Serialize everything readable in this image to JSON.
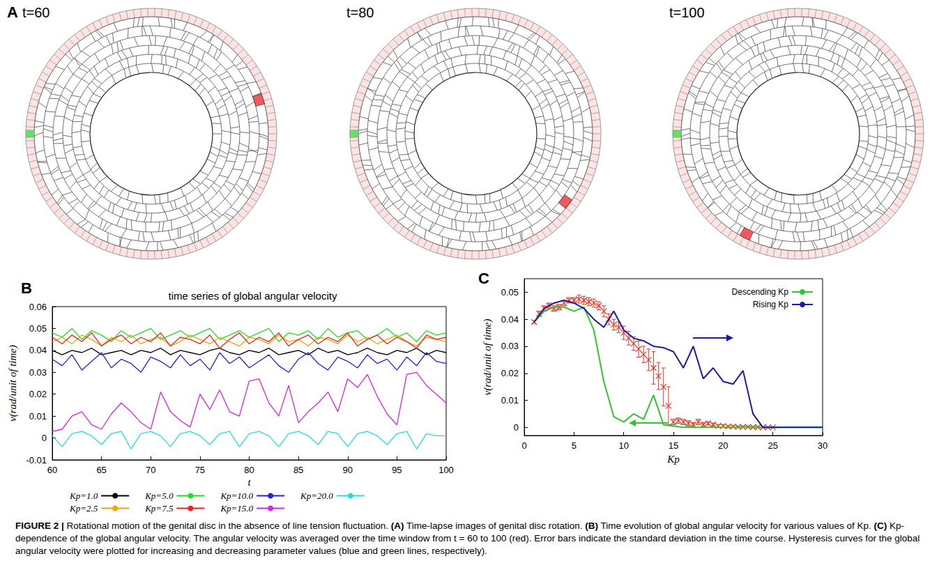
{
  "panel_a": {
    "label": "A",
    "images": [
      {
        "title": "t=60"
      },
      {
        "title": "t=80"
      },
      {
        "title": "t=100"
      }
    ]
  },
  "chart_data": [
    {
      "label": "B",
      "type": "line",
      "title": "time series of global angular velocity",
      "x_label": "t",
      "y_label": "ν(rad/unit of time)",
      "xlim": [
        60,
        100
      ],
      "xticks": [
        60,
        65,
        70,
        75,
        80,
        85,
        90,
        95,
        100
      ],
      "ylim": [
        -0.01,
        0.06
      ],
      "yticks": [
        -0.01,
        0,
        0.01,
        0.02,
        0.03,
        0.04,
        0.05,
        0.06
      ],
      "grid": false,
      "legend": "bottom",
      "x": [
        60,
        61,
        62,
        63,
        64,
        65,
        66,
        67,
        68,
        69,
        70,
        71,
        72,
        73,
        74,
        75,
        76,
        77,
        78,
        79,
        80,
        81,
        82,
        83,
        84,
        85,
        86,
        87,
        88,
        89,
        90,
        91,
        92,
        93,
        94,
        95,
        96,
        97,
        98,
        99,
        100
      ],
      "series": [
        {
          "name": "Kp=1.0",
          "color": "#000000",
          "values": [
            0.04,
            0.038,
            0.04,
            0.039,
            0.041,
            0.038,
            0.039,
            0.04,
            0.038,
            0.04,
            0.039,
            0.041,
            0.038,
            0.04,
            0.039,
            0.038,
            0.04,
            0.041,
            0.039,
            0.038,
            0.04,
            0.039,
            0.041,
            0.038,
            0.039,
            0.04,
            0.038,
            0.041,
            0.039,
            0.04,
            0.038,
            0.039,
            0.041,
            0.039,
            0.038,
            0.04,
            0.039,
            0.041,
            0.038,
            0.04,
            0.039
          ]
        },
        {
          "name": "Kp=2.5",
          "color": "#f5a300",
          "values": [
            0.044,
            0.046,
            0.043,
            0.047,
            0.045,
            0.042,
            0.046,
            0.044,
            0.047,
            0.043,
            0.045,
            0.046,
            0.042,
            0.044,
            0.047,
            0.045,
            0.043,
            0.046,
            0.044,
            0.042,
            0.046,
            0.045,
            0.043,
            0.047,
            0.044,
            0.045,
            0.042,
            0.046,
            0.045,
            0.043,
            0.047,
            0.044,
            0.046,
            0.043,
            0.045,
            0.047,
            0.044,
            0.042,
            0.046,
            0.045,
            0.044
          ]
        },
        {
          "name": "Kp=5.0",
          "color": "#22dd22",
          "values": [
            0.048,
            0.046,
            0.05,
            0.045,
            0.049,
            0.047,
            0.044,
            0.049,
            0.046,
            0.048,
            0.05,
            0.045,
            0.047,
            0.049,
            0.046,
            0.048,
            0.05,
            0.045,
            0.047,
            0.049,
            0.046,
            0.048,
            0.05,
            0.044,
            0.048,
            0.047,
            0.049,
            0.045,
            0.05,
            0.046,
            0.048,
            0.049,
            0.045,
            0.047,
            0.05,
            0.046,
            0.048,
            0.044,
            0.049,
            0.047,
            0.048
          ]
        },
        {
          "name": "Kp=7.5",
          "color": "#ee2222",
          "values": [
            0.046,
            0.043,
            0.047,
            0.044,
            0.048,
            0.042,
            0.045,
            0.047,
            0.043,
            0.046,
            0.044,
            0.048,
            0.042,
            0.046,
            0.045,
            0.043,
            0.047,
            0.041,
            0.045,
            0.048,
            0.043,
            0.046,
            0.044,
            0.048,
            0.042,
            0.045,
            0.047,
            0.043,
            0.046,
            0.044,
            0.048,
            0.042,
            0.045,
            0.047,
            0.043,
            0.046,
            0.044,
            0.041,
            0.047,
            0.045,
            0.046
          ]
        },
        {
          "name": "Kp=10.0",
          "color": "#2222dd",
          "values": [
            0.036,
            0.033,
            0.038,
            0.031,
            0.035,
            0.039,
            0.032,
            0.036,
            0.034,
            0.03,
            0.037,
            0.035,
            0.032,
            0.038,
            0.033,
            0.036,
            0.031,
            0.039,
            0.034,
            0.037,
            0.032,
            0.035,
            0.038,
            0.033,
            0.03,
            0.036,
            0.039,
            0.034,
            0.031,
            0.037,
            0.035,
            0.032,
            0.038,
            0.034,
            0.036,
            0.031,
            0.037,
            0.033,
            0.039,
            0.035,
            0.034
          ]
        },
        {
          "name": "Kp=15.0",
          "color": "#dd22dd",
          "values": [
            0.003,
            0.004,
            0.01,
            0.012,
            0.006,
            0.004,
            0.011,
            0.016,
            0.012,
            0.007,
            0.004,
            0.021,
            0.012,
            0.008,
            0.005,
            0.02,
            0.013,
            0.022,
            0.012,
            0.01,
            0.026,
            0.027,
            0.016,
            0.01,
            0.024,
            0.007,
            0.012,
            0.016,
            0.021,
            0.012,
            0.027,
            0.023,
            0.029,
            0.019,
            0.011,
            0.006,
            0.029,
            0.03,
            0.024,
            0.02,
            0.016
          ]
        },
        {
          "name": "Kp=20.0",
          "color": "#22dddd",
          "values": [
            0.001,
            -0.004,
            0.002,
            0.003,
            0.001,
            -0.003,
            0.002,
            0.003,
            -0.005,
            0.002,
            0.003,
            0.001,
            -0.004,
            0.002,
            0.003,
            0.001,
            -0.003,
            0.002,
            0.003,
            -0.004,
            0.002,
            0.003,
            0.001,
            -0.004,
            0.002,
            0.003,
            0.001,
            -0.003,
            0.003,
            0.002,
            -0.004,
            0.002,
            0.003,
            0.001,
            -0.003,
            0.002,
            0.003,
            -0.005,
            0.002,
            0.001,
            0.001
          ]
        }
      ]
    },
    {
      "label": "C",
      "type": "line",
      "x_label": "Kp",
      "y_label": "ν(rad/unit of time)",
      "xlim": [
        0,
        30
      ],
      "xticks": [
        0,
        5,
        10,
        15,
        20,
        25,
        30
      ],
      "ylim": [
        -0.003,
        0.055
      ],
      "yticks": [
        0,
        0.01,
        0.02,
        0.03,
        0.04,
        0.05
      ],
      "grid": false,
      "legend": "top-right",
      "series": [
        {
          "type": "scatter",
          "color": "#ee3322",
          "marker": "x",
          "x": [
            1,
            1.5,
            2,
            2.5,
            3,
            3.5,
            4,
            4.5,
            5,
            5.5,
            6,
            6.5,
            7,
            7.5,
            8,
            8.5,
            9,
            9.5,
            10,
            10.5,
            11,
            11.5,
            12,
            12.5,
            13,
            13.5,
            14,
            14.5,
            15,
            15.5,
            16,
            16.5,
            17,
            17.5,
            18,
            18.5,
            19,
            19.5,
            20,
            20.5,
            21,
            21.5,
            22,
            22.5,
            23,
            23.5,
            24,
            24.5,
            25
          ],
          "values": [
            0.039,
            0.042,
            0.044,
            0.045,
            0.044,
            0.0445,
            0.046,
            0.047,
            0.047,
            0.0475,
            0.047,
            0.0465,
            0.046,
            0.045,
            0.043,
            0.04,
            0.038,
            0.037,
            0.035,
            0.033,
            0.031,
            0.029,
            0.027,
            0.025,
            0.022,
            0.019,
            0.015,
            0.008,
            0.002,
            0.0025,
            0.002,
            0.0015,
            0.001,
            0.002,
            0.001,
            0.0015,
            0.001,
            0.0005,
            0.0005,
            0.0003,
            0.0003,
            0.0002,
            0.0002,
            0.0002,
            0.0001,
            0.0001,
            0.0001,
            0,
            0
          ],
          "errors": [
            0.0005,
            0.001,
            0.001,
            0.001,
            0.001,
            0.001,
            0.001,
            0.001,
            0.001,
            0.0015,
            0.0015,
            0.0015,
            0.0015,
            0.0015,
            0.002,
            0.002,
            0.002,
            0.002,
            0.0025,
            0.0025,
            0.0025,
            0.003,
            0.003,
            0.004,
            0.006,
            0.005,
            0.007,
            0.007,
            0.001,
            0.001,
            0.001,
            0.001,
            0.0008,
            0.001,
            0.0008,
            0.0006,
            0.0006,
            0.0005,
            0.0005,
            0.0004,
            0.0004,
            0.0003,
            0.0003,
            0.0003,
            0.0002,
            0.0002,
            0.0002,
            0.0001,
            0.0001
          ]
        },
        {
          "name": "Descending Kp",
          "color": "#2ec52e",
          "x": [
            1,
            2,
            3,
            4,
            5,
            6,
            7,
            8,
            9,
            10,
            11,
            12,
            13,
            14,
            15,
            16,
            17,
            18,
            19,
            20,
            21,
            22,
            23,
            24,
            25,
            26,
            27,
            28,
            29,
            30
          ],
          "values": [
            0.039,
            0.043,
            0.0445,
            0.0445,
            0.043,
            0.0445,
            0.036,
            0.017,
            0.004,
            0.002,
            0.005,
            0.003,
            0.012,
            0.001,
            0.0005,
            0,
            0,
            0,
            0,
            0,
            0,
            0,
            0,
            0,
            0,
            0,
            0,
            0,
            0,
            0
          ]
        },
        {
          "name": "Rising Kp",
          "color": "#1a1aa6",
          "x": [
            1,
            2,
            3,
            4,
            5,
            6,
            7,
            8,
            9,
            10,
            11,
            12,
            13,
            14,
            15,
            16,
            17,
            18,
            19,
            20,
            21,
            22,
            23,
            24,
            25,
            26,
            27,
            28,
            29,
            30
          ],
          "values": [
            0.039,
            0.044,
            0.046,
            0.047,
            0.046,
            0.044,
            0.04,
            0.037,
            0.043,
            0.036,
            0.033,
            0.032,
            0.03,
            0.0295,
            0.028,
            0.022,
            0.03,
            0.018,
            0.022,
            0.017,
            0.016,
            0.021,
            0.005,
            0,
            0,
            0,
            0,
            0,
            0,
            0
          ]
        }
      ]
    }
  ],
  "caption": {
    "label": "FIGURE 2 |",
    "text": "Rotational motion of the genital disc in the absence of line tension fluctuation. (A) Time-lapse images of genital disc rotation. (B) Time evolution of global angular velocity for various values of Kp. (C) Kp-dependence of the global angular velocity. The angular velocity was averaged over the time window from t = 60 to 100 (red). Error bars indicate the standard deviation in the time course. Hysteresis curves for the global angular velocity were plotted for increasing and decreasing parameter values (blue and green lines, respectively)."
  }
}
